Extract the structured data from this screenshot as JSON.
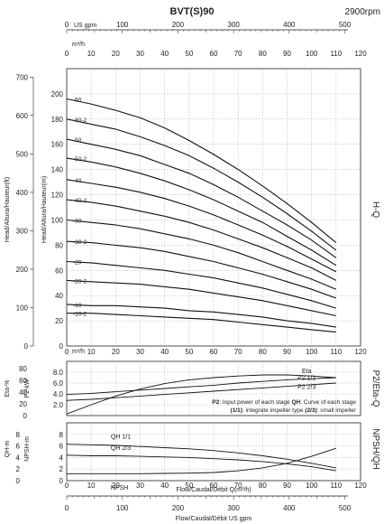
{
  "header": {
    "title": "BVT(S)90",
    "speed": "2900rpm"
  },
  "top_axis": {
    "unit": "US gpm",
    "ticks": [
      "0",
      "100",
      "200",
      "300",
      "400",
      "500"
    ]
  },
  "qh_axis": {
    "unit": "m³/h",
    "ticks": [
      "0",
      "10",
      "20",
      "30",
      "40",
      "50",
      "60",
      "70",
      "80",
      "90",
      "100",
      "110",
      "120"
    ]
  },
  "bottom_axis": {
    "flow_label": "Flow/Caudal/Débit Q(m³/h)",
    "gpm_label": "Flow/Caudal/Débit  US gpm",
    "ticks": [
      "0",
      "100",
      "200",
      "300",
      "400",
      "500"
    ]
  },
  "side_labels": {
    "right_hq": "H-Q",
    "right_p2eta": "P2/Eta-Q",
    "right_npsh": "NPSH/QH"
  },
  "p2_panel": {
    "note_line1_a": "P2",
    "note_line1_b": ": Input power of each stage ",
    "note_line1_c": "QH",
    "note_line1_d": ": Curve of each stage",
    "note_line2_a": "(1/1)",
    "note_line2_b": ": integrate impeller type ",
    "note_line2_c": "(2/3)",
    "note_line2_d": ": small impeller"
  },
  "chart_data": [
    {
      "type": "line",
      "title": "H-Q",
      "xlabel": "m³/h",
      "ylabel": "Head/Altura/Hauteur(m)",
      "ylabel_secondary": "Head/Altura/Hauteur(ft)",
      "xlim": [
        0,
        120
      ],
      "ylim": [
        0,
        220
      ],
      "ylim_secondary": [
        0,
        722
      ],
      "x_ticks": [
        0,
        10,
        20,
        30,
        40,
        50,
        60,
        70,
        80,
        90,
        100,
        110,
        120
      ],
      "y_ticks": [
        0,
        20,
        40,
        60,
        80,
        100,
        120,
        140,
        160,
        180,
        200
      ],
      "y_ticks_secondary": [
        0,
        100,
        200,
        300,
        400,
        500,
        600,
        700
      ],
      "grid": true,
      "x": [
        0,
        10,
        20,
        30,
        40,
        50,
        60,
        70,
        80,
        90,
        100,
        110
      ],
      "series": [
        {
          "name": "60",
          "values": [
            196,
            192,
            187,
            181,
            173,
            163,
            152,
            140,
            127,
            113,
            98,
            82
          ]
        },
        {
          "name": "60-2",
          "values": [
            180,
            176,
            172,
            166,
            159,
            151,
            141,
            130,
            118,
            105,
            91,
            76
          ]
        },
        {
          "name": "50",
          "values": [
            164,
            160,
            156,
            151,
            144,
            137,
            128,
            118,
            107,
            96,
            84,
            70
          ]
        },
        {
          "name": "50-2",
          "values": [
            149,
            146,
            142,
            137,
            131,
            124,
            116,
            107,
            98,
            87,
            76,
            64
          ]
        },
        {
          "name": "40",
          "values": [
            132,
            129,
            126,
            122,
            117,
            111,
            104,
            96,
            88,
            79,
            69,
            59
          ]
        },
        {
          "name": "40-2",
          "values": [
            116,
            114,
            111,
            107,
            103,
            98,
            92,
            85,
            78,
            70,
            62,
            52
          ]
        },
        {
          "name": "30",
          "values": [
            100,
            98,
            96,
            93,
            89,
            85,
            80,
            74,
            67,
            60,
            53,
            45
          ]
        },
        {
          "name": "30-2",
          "values": [
            83,
            82,
            80,
            78,
            75,
            71,
            67,
            62,
            57,
            51,
            45,
            38
          ]
        },
        {
          "name": "20",
          "values": [
            67,
            66,
            64,
            62,
            60,
            57,
            54,
            50,
            46,
            41,
            36,
            30
          ]
        },
        {
          "name": "20-2",
          "values": [
            52,
            51,
            50,
            49,
            47,
            45,
            42,
            39,
            36,
            32,
            28,
            24
          ]
        },
        {
          "name": "10",
          "values": [
            33,
            32,
            32,
            31,
            30,
            28,
            27,
            25,
            23,
            20,
            18,
            15
          ]
        },
        {
          "name": "10-2",
          "values": [
            26,
            26,
            25,
            24,
            23,
            22,
            21,
            19,
            17,
            15,
            13,
            11
          ]
        }
      ]
    },
    {
      "type": "line",
      "title": "P2/Eta-Q",
      "ylabel": "P2-kW",
      "ylabel_secondary": "Eta-%",
      "xlim": [
        0,
        120
      ],
      "ylim": [
        0,
        10
      ],
      "y_ticks": [
        "2.0",
        "4.0",
        "6.0",
        "8.0"
      ],
      "y_ticks_secondary": [
        0,
        20,
        40,
        60,
        80
      ],
      "x": [
        0,
        10,
        20,
        30,
        40,
        50,
        60,
        70,
        80,
        90,
        100,
        110
      ],
      "series": [
        {
          "name": "Eta",
          "values": [
            0.3,
            2.0,
            3.6,
            4.9,
            5.9,
            6.6,
            7.0,
            7.3,
            7.5,
            7.5,
            7.3,
            7.0
          ]
        },
        {
          "name": "P2 1/1",
          "values": [
            3.9,
            4.1,
            4.4,
            4.7,
            5.0,
            5.3,
            5.6,
            6.0,
            6.3,
            6.6,
            6.8,
            7.0
          ]
        },
        {
          "name": "P2 2/3",
          "values": [
            2.8,
            3.0,
            3.3,
            3.6,
            3.9,
            4.2,
            4.5,
            4.8,
            5.1,
            5.4,
            5.7,
            6.0
          ]
        }
      ]
    },
    {
      "type": "line",
      "title": "NPSH/QH",
      "ylabel": "QH-m",
      "ylabel_secondary": "NPSH-m",
      "xlim": [
        0,
        120
      ],
      "ylim": [
        0,
        10
      ],
      "y_ticks": [
        0,
        2,
        4,
        6,
        8
      ],
      "y_ticks_secondary": [
        0,
        2,
        4,
        6,
        8
      ],
      "x": [
        0,
        10,
        20,
        30,
        40,
        50,
        60,
        70,
        80,
        90,
        100,
        110
      ],
      "series": [
        {
          "name": "QH 1/1",
          "values": [
            6.3,
            6.2,
            6.1,
            5.9,
            5.7,
            5.5,
            5.2,
            4.8,
            4.3,
            3.7,
            3.0,
            2.2
          ]
        },
        {
          "name": "QH 2/3",
          "values": [
            4.4,
            4.3,
            4.3,
            4.2,
            4.1,
            4.0,
            3.8,
            3.6,
            3.3,
            2.9,
            2.4,
            1.7
          ]
        },
        {
          "name": "NPSH",
          "values": [
            1.2,
            1.2,
            1.2,
            1.2,
            1.25,
            1.3,
            1.4,
            1.7,
            2.2,
            3.0,
            4.2,
            5.6
          ]
        }
      ]
    }
  ]
}
